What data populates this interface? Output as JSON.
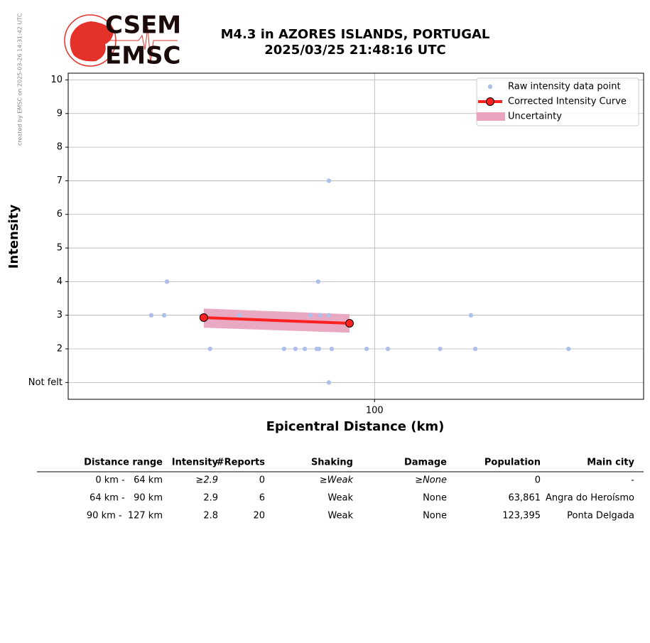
{
  "side_note": "created by EMSC on 2025-03-26 14:31:42 UTC",
  "logo": {
    "top": "CSEM",
    "bottom": "EMSC"
  },
  "chart_data": {
    "type": "scatter",
    "title": [
      "M4.3 in AZORES ISLANDS, PORTUGAL",
      "2025/03/25 21:48:16 UTC"
    ],
    "x_label": "Epicentral Distance (km)",
    "y_label": "Intensity",
    "xscale": "log",
    "xlim": [
      16,
      500
    ],
    "xticks": [
      100
    ],
    "ylim": [
      0.5,
      10.2
    ],
    "yticks": [
      {
        "value": 1,
        "label": "Not felt"
      },
      2,
      3,
      4,
      5,
      6,
      7,
      8,
      9,
      10
    ],
    "grid": true,
    "legend": "upper right",
    "series": [
      {
        "name": "Raw intensity data point",
        "type": "scatter",
        "color": "#aec0ea",
        "x": [
          26.3,
          28.4,
          28.9,
          37.4,
          44.6,
          58.2,
          62.3,
          65.9,
          68.2,
          70.8,
          71.4,
          71.7,
          72.3,
          76.1,
          76.1,
          76.1,
          77.4,
          95.4,
          108.3,
          148,
          178,
          182.7,
          319
        ],
        "values": [
          3,
          3,
          4,
          2,
          3,
          2,
          2,
          2,
          3,
          2,
          4,
          2,
          3,
          3,
          7,
          1,
          2,
          2,
          2,
          2,
          3,
          2,
          2
        ]
      },
      {
        "name": "Corrected Intensity Curve",
        "type": "line",
        "color": "#ff2020",
        "x": [
          36.0,
          86.1
        ],
        "values": [
          2.93,
          2.76
        ]
      },
      {
        "name": "Uncertainty",
        "type": "band",
        "color": "#e8a4c0",
        "x": [
          36.0,
          86.1
        ],
        "lower": [
          2.63,
          2.48
        ],
        "upper": [
          3.2,
          3.03
        ]
      }
    ]
  },
  "table": {
    "header": [
      "Distance range",
      "Intensity",
      "#Reports",
      "Shaking",
      "Damage",
      "Population",
      "Main city"
    ],
    "rows": [
      [
        "0 km -   64 km",
        "≥2.9",
        "0",
        "≥Weak",
        "≥None",
        "0",
        "-"
      ],
      [
        "64 km -   90 km",
        "2.9",
        "6",
        "Weak",
        "None",
        "63,861",
        "Angra do Heroísmo"
      ],
      [
        "90 km -  127 km",
        "2.8",
        "20",
        "Weak",
        "None",
        "123,395",
        "Ponta Delgada"
      ]
    ]
  }
}
